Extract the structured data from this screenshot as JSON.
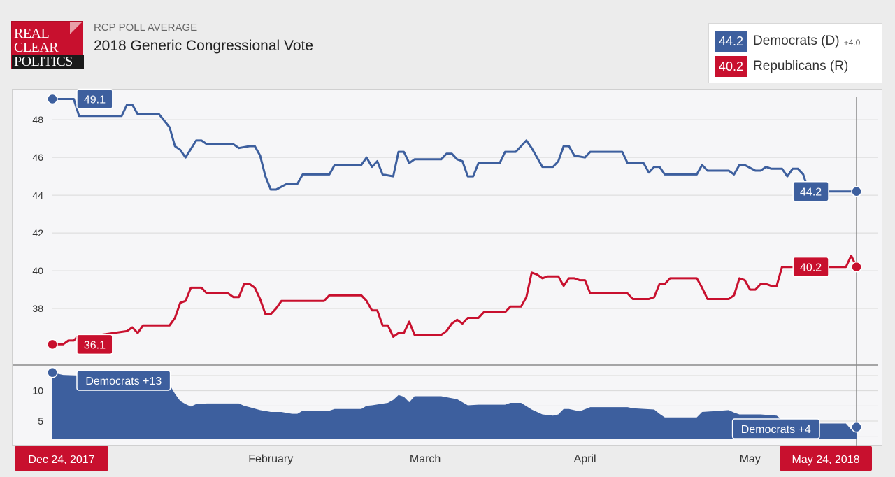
{
  "header": {
    "logo_lines": [
      "REAL",
      "CLEAR",
      "POLITICS"
    ],
    "subtitle": "RCP POLL AVERAGE",
    "title": "2018 Generic Congressional Vote"
  },
  "legend": [
    {
      "value": "44.2",
      "name": "Democrats (D)",
      "change": "+4.0",
      "color": "#3d5f9e"
    },
    {
      "value": "40.2",
      "name": "Republicans (R)",
      "change": "",
      "color": "#c8102e"
    }
  ],
  "colors": {
    "dem": "#3d5f9e",
    "rep": "#c8102e",
    "grid": "#d9d9d9",
    "axis": "#333333"
  },
  "chart_data": {
    "type": "line",
    "x_labels": [
      "Dec 24, 2017",
      "February",
      "March",
      "April",
      "May",
      "May 24, 2018"
    ],
    "y_ticks": [
      38,
      40,
      42,
      44,
      46,
      48
    ],
    "ylim": [
      35,
      49.6
    ],
    "series": [
      {
        "name": "Democrats (D)",
        "start_label": "49.1",
        "end_label": "44.2",
        "points": [
          [
            "2017-12-24",
            49.1
          ],
          [
            "2017-12-28",
            49.1
          ],
          [
            "2017-12-29",
            48.2
          ],
          [
            "2018-01-02",
            48.2
          ],
          [
            "2018-01-06",
            48.2
          ],
          [
            "2018-01-07",
            48.8
          ],
          [
            "2018-01-08",
            48.8
          ],
          [
            "2018-01-09",
            48.3
          ],
          [
            "2018-01-13",
            48.3
          ],
          [
            "2018-01-15",
            47.6
          ],
          [
            "2018-01-16",
            46.6
          ],
          [
            "2018-01-17",
            46.4
          ],
          [
            "2018-01-18",
            46.0
          ],
          [
            "2018-01-20",
            46.9
          ],
          [
            "2018-01-21",
            46.9
          ],
          [
            "2018-01-22",
            46.7
          ],
          [
            "2018-01-27",
            46.7
          ],
          [
            "2018-01-28",
            46.5
          ],
          [
            "2018-01-30",
            46.6
          ],
          [
            "2018-01-31",
            46.6
          ],
          [
            "2018-02-01",
            46.1
          ],
          [
            "2018-02-02",
            45.0
          ],
          [
            "2018-02-03",
            44.3
          ],
          [
            "2018-02-04",
            44.3
          ],
          [
            "2018-02-06",
            44.6
          ],
          [
            "2018-02-08",
            44.6
          ],
          [
            "2018-02-09",
            45.1
          ],
          [
            "2018-02-14",
            45.1
          ],
          [
            "2018-02-15",
            45.6
          ],
          [
            "2018-02-20",
            45.6
          ],
          [
            "2018-02-21",
            46.0
          ],
          [
            "2018-02-22",
            45.5
          ],
          [
            "2018-02-23",
            45.8
          ],
          [
            "2018-02-24",
            45.1
          ],
          [
            "2018-02-26",
            45.0
          ],
          [
            "2018-02-27",
            46.3
          ],
          [
            "2018-02-28",
            46.3
          ],
          [
            "2018-03-01",
            45.7
          ],
          [
            "2018-03-02",
            45.9
          ],
          [
            "2018-03-07",
            45.9
          ],
          [
            "2018-03-08",
            46.2
          ],
          [
            "2018-03-09",
            46.2
          ],
          [
            "2018-03-10",
            45.9
          ],
          [
            "2018-03-11",
            45.8
          ],
          [
            "2018-03-12",
            45.0
          ],
          [
            "2018-03-13",
            45.0
          ],
          [
            "2018-03-14",
            45.7
          ],
          [
            "2018-03-18",
            45.7
          ],
          [
            "2018-03-19",
            46.3
          ],
          [
            "2018-03-21",
            46.3
          ],
          [
            "2018-03-23",
            46.9
          ],
          [
            "2018-03-24",
            46.5
          ],
          [
            "2018-03-26",
            45.5
          ],
          [
            "2018-03-28",
            45.5
          ],
          [
            "2018-03-29",
            45.8
          ],
          [
            "2018-03-30",
            46.6
          ],
          [
            "2018-03-31",
            46.6
          ],
          [
            "2018-04-01",
            46.1
          ],
          [
            "2018-04-03",
            46.0
          ],
          [
            "2018-04-04",
            46.3
          ],
          [
            "2018-04-10",
            46.3
          ],
          [
            "2018-04-11",
            45.7
          ],
          [
            "2018-04-14",
            45.7
          ],
          [
            "2018-04-15",
            45.2
          ],
          [
            "2018-04-16",
            45.5
          ],
          [
            "2018-04-17",
            45.5
          ],
          [
            "2018-04-18",
            45.1
          ],
          [
            "2018-04-24",
            45.1
          ],
          [
            "2018-04-25",
            45.6
          ],
          [
            "2018-04-26",
            45.3
          ],
          [
            "2018-04-30",
            45.3
          ],
          [
            "2018-05-01",
            45.1
          ],
          [
            "2018-05-02",
            45.6
          ],
          [
            "2018-05-03",
            45.6
          ],
          [
            "2018-05-05",
            45.3
          ],
          [
            "2018-05-06",
            45.3
          ],
          [
            "2018-05-07",
            45.5
          ],
          [
            "2018-05-08",
            45.4
          ],
          [
            "2018-05-10",
            45.4
          ],
          [
            "2018-05-11",
            45.0
          ],
          [
            "2018-05-12",
            45.4
          ],
          [
            "2018-05-13",
            45.4
          ],
          [
            "2018-05-14",
            45.1
          ],
          [
            "2018-05-15",
            44.2
          ],
          [
            "2018-05-24",
            44.2
          ]
        ]
      },
      {
        "name": "Republicans (R)",
        "start_label": "36.1",
        "end_label": "40.2",
        "points": [
          [
            "2017-12-24",
            36.1
          ],
          [
            "2017-12-26",
            36.1
          ],
          [
            "2017-12-27",
            36.3
          ],
          [
            "2017-12-28",
            36.3
          ],
          [
            "2017-12-29",
            36.6
          ],
          [
            "2018-01-02",
            36.6
          ],
          [
            "2018-01-07",
            36.8
          ],
          [
            "2018-01-08",
            37.0
          ],
          [
            "2018-01-09",
            36.7
          ],
          [
            "2018-01-10",
            37.1
          ],
          [
            "2018-01-15",
            37.1
          ],
          [
            "2018-01-16",
            37.5
          ],
          [
            "2018-01-17",
            38.3
          ],
          [
            "2018-01-18",
            38.4
          ],
          [
            "2018-01-19",
            39.1
          ],
          [
            "2018-01-21",
            39.1
          ],
          [
            "2018-01-22",
            38.8
          ],
          [
            "2018-01-26",
            38.8
          ],
          [
            "2018-01-27",
            38.6
          ],
          [
            "2018-01-28",
            38.6
          ],
          [
            "2018-01-29",
            39.3
          ],
          [
            "2018-01-30",
            39.3
          ],
          [
            "2018-01-31",
            39.1
          ],
          [
            "2018-02-01",
            38.5
          ],
          [
            "2018-02-02",
            37.7
          ],
          [
            "2018-02-03",
            37.7
          ],
          [
            "2018-02-04",
            38.0
          ],
          [
            "2018-02-05",
            38.4
          ],
          [
            "2018-02-13",
            38.4
          ],
          [
            "2018-02-14",
            38.7
          ],
          [
            "2018-02-20",
            38.7
          ],
          [
            "2018-02-21",
            38.4
          ],
          [
            "2018-02-22",
            37.9
          ],
          [
            "2018-02-23",
            37.9
          ],
          [
            "2018-02-24",
            37.1
          ],
          [
            "2018-02-25",
            37.1
          ],
          [
            "2018-02-26",
            36.5
          ],
          [
            "2018-02-27",
            36.7
          ],
          [
            "2018-02-28",
            36.7
          ],
          [
            "2018-03-01",
            37.3
          ],
          [
            "2018-03-02",
            36.6
          ],
          [
            "2018-03-07",
            36.6
          ],
          [
            "2018-03-08",
            36.8
          ],
          [
            "2018-03-09",
            37.2
          ],
          [
            "2018-03-10",
            37.4
          ],
          [
            "2018-03-11",
            37.2
          ],
          [
            "2018-03-12",
            37.5
          ],
          [
            "2018-03-14",
            37.5
          ],
          [
            "2018-03-15",
            37.8
          ],
          [
            "2018-03-19",
            37.8
          ],
          [
            "2018-03-20",
            38.1
          ],
          [
            "2018-03-22",
            38.1
          ],
          [
            "2018-03-23",
            38.6
          ],
          [
            "2018-03-24",
            39.9
          ],
          [
            "2018-03-25",
            39.8
          ],
          [
            "2018-03-26",
            39.6
          ],
          [
            "2018-03-27",
            39.7
          ],
          [
            "2018-03-29",
            39.7
          ],
          [
            "2018-03-30",
            39.2
          ],
          [
            "2018-03-31",
            39.6
          ],
          [
            "2018-04-01",
            39.6
          ],
          [
            "2018-04-02",
            39.5
          ],
          [
            "2018-04-03",
            39.5
          ],
          [
            "2018-04-04",
            38.8
          ],
          [
            "2018-04-11",
            38.8
          ],
          [
            "2018-04-12",
            38.5
          ],
          [
            "2018-04-15",
            38.5
          ],
          [
            "2018-04-16",
            38.6
          ],
          [
            "2018-04-17",
            39.3
          ],
          [
            "2018-04-18",
            39.3
          ],
          [
            "2018-04-19",
            39.6
          ],
          [
            "2018-04-24",
            39.6
          ],
          [
            "2018-04-25",
            39.1
          ],
          [
            "2018-04-26",
            38.5
          ],
          [
            "2018-04-30",
            38.5
          ],
          [
            "2018-05-01",
            38.7
          ],
          [
            "2018-05-02",
            39.6
          ],
          [
            "2018-05-03",
            39.5
          ],
          [
            "2018-05-04",
            39.0
          ],
          [
            "2018-05-05",
            39.0
          ],
          [
            "2018-05-06",
            39.3
          ],
          [
            "2018-05-07",
            39.3
          ],
          [
            "2018-05-08",
            39.2
          ],
          [
            "2018-05-09",
            39.2
          ],
          [
            "2018-05-10",
            40.2
          ],
          [
            "2018-05-22",
            40.2
          ],
          [
            "2018-05-23",
            40.8
          ],
          [
            "2018-05-24",
            40.2
          ]
        ]
      }
    ],
    "spread": {
      "y_ticks": [
        5,
        10
      ],
      "ylim": [
        2,
        14
      ],
      "start_label": "Democrats +13",
      "end_label": "Democrats +4",
      "points": [
        [
          "2017-12-24",
          13.0
        ],
        [
          "2017-12-26",
          12.6
        ],
        [
          "2018-01-01",
          12.4
        ],
        [
          "2018-01-06",
          11.9
        ],
        [
          "2018-01-09",
          11.9
        ],
        [
          "2018-01-14",
          11.9
        ],
        [
          "2018-01-15",
          11.0
        ],
        [
          "2018-01-16",
          9.5
        ],
        [
          "2018-01-17",
          8.3
        ],
        [
          "2018-01-18",
          7.8
        ],
        [
          "2018-01-19",
          7.4
        ],
        [
          "2018-01-20",
          7.8
        ],
        [
          "2018-01-22",
          7.9
        ],
        [
          "2018-01-28",
          7.9
        ],
        [
          "2018-01-29",
          7.5
        ],
        [
          "2018-01-30",
          7.3
        ],
        [
          "2018-02-01",
          6.8
        ],
        [
          "2018-02-03",
          6.5
        ],
        [
          "2018-02-05",
          6.5
        ],
        [
          "2018-02-07",
          6.2
        ],
        [
          "2018-02-08",
          6.2
        ],
        [
          "2018-02-09",
          6.7
        ],
        [
          "2018-02-14",
          6.7
        ],
        [
          "2018-02-15",
          7.0
        ],
        [
          "2018-02-20",
          7.0
        ],
        [
          "2018-02-21",
          7.5
        ],
        [
          "2018-02-22",
          7.6
        ],
        [
          "2018-02-25",
          8.0
        ],
        [
          "2018-02-26",
          8.5
        ],
        [
          "2018-02-27",
          9.3
        ],
        [
          "2018-02-28",
          9.0
        ],
        [
          "2018-03-01",
          8.1
        ],
        [
          "2018-03-02",
          9.1
        ],
        [
          "2018-03-07",
          9.1
        ],
        [
          "2018-03-10",
          8.6
        ],
        [
          "2018-03-12",
          7.6
        ],
        [
          "2018-03-14",
          7.7
        ],
        [
          "2018-03-19",
          7.7
        ],
        [
          "2018-03-20",
          8.0
        ],
        [
          "2018-03-22",
          8.0
        ],
        [
          "2018-03-24",
          6.9
        ],
        [
          "2018-03-26",
          6.1
        ],
        [
          "2018-03-28",
          5.9
        ],
        [
          "2018-03-29",
          6.1
        ],
        [
          "2018-03-30",
          7.0
        ],
        [
          "2018-03-31",
          7.0
        ],
        [
          "2018-04-02",
          6.6
        ],
        [
          "2018-04-04",
          7.3
        ],
        [
          "2018-04-11",
          7.3
        ],
        [
          "2018-04-12",
          7.1
        ],
        [
          "2018-04-16",
          6.9
        ],
        [
          "2018-04-17",
          6.2
        ],
        [
          "2018-04-18",
          5.6
        ],
        [
          "2018-04-24",
          5.6
        ],
        [
          "2018-04-25",
          6.5
        ],
        [
          "2018-04-30",
          6.8
        ],
        [
          "2018-05-01",
          6.4
        ],
        [
          "2018-05-02",
          6.1
        ],
        [
          "2018-05-05",
          6.1
        ],
        [
          "2018-05-06",
          6.1
        ],
        [
          "2018-05-09",
          5.9
        ],
        [
          "2018-05-10",
          5.2
        ],
        [
          "2018-05-11",
          5.0
        ],
        [
          "2018-05-14",
          5.4
        ],
        [
          "2018-05-15",
          4.6
        ],
        [
          "2018-05-22",
          4.6
        ],
        [
          "2018-05-23",
          3.6
        ],
        [
          "2018-05-24",
          4.0
        ]
      ]
    }
  }
}
